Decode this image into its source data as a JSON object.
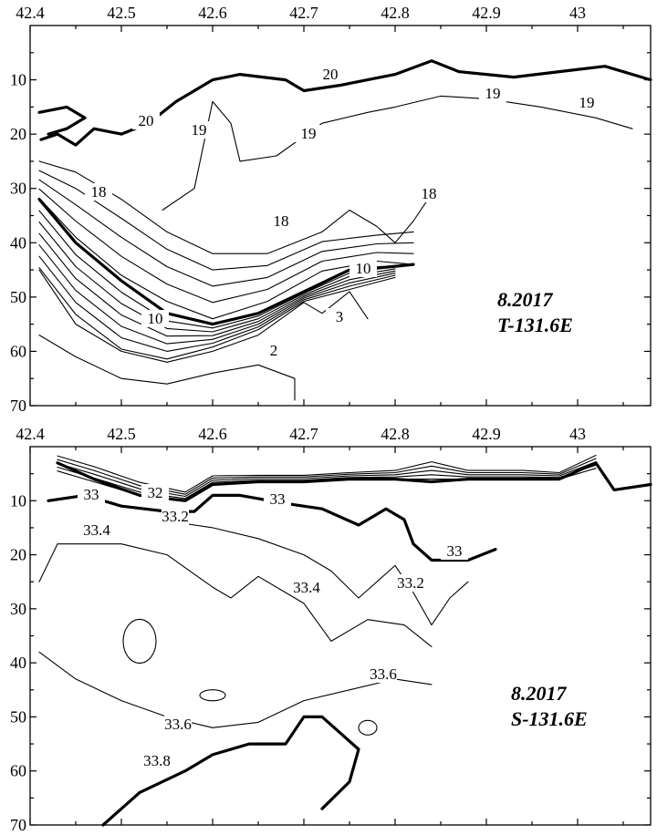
{
  "chart_data": [
    {
      "type": "contour",
      "title": "8.2017",
      "subtitle": "T-131.6E",
      "x_ticks": [
        "42.4",
        "42.5",
        "42.6",
        "42.7",
        "42.8",
        "42.9",
        "43"
      ],
      "y_ticks": [
        "10",
        "20",
        "30",
        "40",
        "50",
        "60",
        "70"
      ],
      "xlim": [
        42.4,
        43.08
      ],
      "ylim": [
        70,
        0
      ],
      "y_inverted": true,
      "grid": false,
      "contour_labels": [
        "20",
        "20",
        "19",
        "19",
        "19",
        "19",
        "18",
        "18",
        "18",
        "10",
        "10",
        "3",
        "2"
      ],
      "contour_lines": [
        {
          "level": 20,
          "bold": true,
          "points": [
            [
              42.412,
              21
            ],
            [
              42.43,
              20
            ],
            [
              42.45,
              22
            ],
            [
              42.47,
              19
            ],
            [
              42.5,
              20
            ],
            [
              42.53,
              18
            ],
            [
              42.56,
              14
            ],
            [
              42.6,
              10
            ],
            [
              42.63,
              9
            ],
            [
              42.68,
              10
            ],
            [
              42.7,
              12
            ],
            [
              42.74,
              11
            ],
            [
              42.8,
              9
            ],
            [
              42.84,
              6.5
            ],
            [
              42.87,
              8.5
            ],
            [
              42.93,
              9.5
            ],
            [
              42.98,
              8.5
            ],
            [
              43.03,
              7.5
            ],
            [
              43.06,
              9
            ],
            [
              43.08,
              10
            ]
          ]
        },
        {
          "level": 20,
          "bold": true,
          "points": [
            [
              42.41,
              16
            ],
            [
              42.44,
              15
            ],
            [
              42.46,
              17
            ],
            [
              42.44,
              19
            ],
            [
              42.42,
              20
            ]
          ]
        },
        {
          "level": 19,
          "bold": false,
          "points": [
            [
              42.545,
              34
            ],
            [
              42.58,
              30
            ],
            [
              42.59,
              22
            ],
            [
              42.6,
              14
            ],
            [
              42.62,
              18
            ],
            [
              42.63,
              25
            ],
            [
              42.67,
              24
            ],
            [
              42.72,
              18
            ],
            [
              42.77,
              16
            ],
            [
              42.8,
              15
            ],
            [
              42.85,
              13
            ],
            [
              42.9,
              13.5
            ],
            [
              42.96,
              15
            ],
            [
              43.02,
              17
            ],
            [
              43.06,
              19
            ]
          ]
        },
        {
          "level": 18,
          "bold": false,
          "points": [
            [
              42.41,
              25
            ],
            [
              42.45,
              27
            ],
            [
              42.5,
              32
            ],
            [
              42.55,
              38
            ],
            [
              42.6,
              42
            ],
            [
              42.66,
              42
            ],
            [
              42.72,
              38
            ],
            [
              42.75,
              34
            ],
            [
              42.78,
              37
            ],
            [
              42.8,
              40
            ],
            [
              42.82,
              36
            ],
            [
              42.84,
              31
            ]
          ]
        },
        {
          "level": 10,
          "bold": true,
          "points": [
            [
              42.41,
              32
            ],
            [
              42.45,
              40
            ],
            [
              42.5,
              47
            ],
            [
              42.55,
              53
            ],
            [
              42.6,
              55
            ],
            [
              42.65,
              53
            ],
            [
              42.7,
              49
            ],
            [
              42.75,
              45
            ],
            [
              42.79,
              44.5
            ],
            [
              42.82,
              44
            ]
          ]
        },
        {
          "level": 3,
          "bold": false,
          "points": [
            [
              42.41,
              45
            ],
            [
              42.45,
              55
            ],
            [
              42.5,
              60
            ],
            [
              42.55,
              62
            ],
            [
              42.6,
              60
            ],
            [
              42.65,
              57
            ],
            [
              42.7,
              51
            ],
            [
              42.72,
              53
            ],
            [
              42.75,
              49
            ],
            [
              42.77,
              54
            ]
          ]
        },
        {
          "level": 2,
          "bold": false,
          "points": [
            [
              42.41,
              57
            ],
            [
              42.45,
              61
            ],
            [
              42.5,
              65
            ],
            [
              42.55,
              66
            ],
            [
              42.6,
              64
            ],
            [
              42.65,
              62.5
            ],
            [
              42.69,
              65
            ],
            [
              42.69,
              69
            ]
          ]
        }
      ]
    },
    {
      "type": "contour",
      "title": "8.2017",
      "subtitle": "S-131.6E",
      "x_ticks": [
        "42.4",
        "42.5",
        "42.6",
        "42.7",
        "42.8",
        "42.9",
        "43"
      ],
      "y_ticks": [
        "10",
        "20",
        "30",
        "40",
        "50",
        "60",
        "70"
      ],
      "xlim": [
        42.4,
        43.08
      ],
      "ylim": [
        70,
        0
      ],
      "y_inverted": true,
      "grid": false,
      "contour_labels": [
        "33",
        "32",
        "33.2",
        "33",
        "33",
        "33.4",
        "33.4",
        "33.2",
        "33.6",
        "33.6",
        "33.8"
      ],
      "contour_lines": [
        {
          "level": 32,
          "bold": true,
          "points": [
            [
              42.43,
              3
            ],
            [
              42.47,
              6
            ],
            [
              42.52,
              9
            ],
            [
              42.57,
              10
            ],
            [
              42.6,
              7
            ],
            [
              42.65,
              6.5
            ],
            [
              42.7,
              6.5
            ],
            [
              42.75,
              6
            ],
            [
              42.8,
              6
            ],
            [
              42.84,
              6.5
            ],
            [
              42.88,
              6
            ],
            [
              42.94,
              6
            ],
            [
              42.98,
              6
            ],
            [
              43.02,
              3
            ],
            [
              43.04,
              8
            ],
            [
              43.08,
              7
            ]
          ]
        },
        {
          "level": 33,
          "bold": true,
          "points": [
            [
              42.42,
              10
            ],
            [
              42.46,
              9
            ],
            [
              42.5,
              11
            ],
            [
              42.55,
              12
            ],
            [
              42.58,
              12
            ],
            [
              42.6,
              9
            ],
            [
              42.63,
              9
            ],
            [
              42.68,
              10.5
            ],
            [
              42.72,
              11.5
            ],
            [
              42.76,
              14.5
            ],
            [
              42.79,
              11.5
            ],
            [
              42.81,
              13.5
            ],
            [
              42.82,
              18
            ],
            [
              42.84,
              21
            ],
            [
              42.88,
              21
            ],
            [
              42.91,
              19
            ]
          ]
        },
        {
          "level": 33.2,
          "bold": false,
          "points": [
            [
              42.56,
              14
            ],
            [
              42.6,
              15
            ],
            [
              42.65,
              17
            ],
            [
              42.7,
              20
            ],
            [
              42.73,
              23
            ],
            [
              42.76,
              28
            ],
            [
              42.8,
              22
            ],
            [
              42.82,
              27
            ],
            [
              42.84,
              33
            ],
            [
              42.86,
              28
            ],
            [
              42.88,
              25
            ]
          ]
        },
        {
          "level": 33.4,
          "bold": false,
          "points": [
            [
              42.41,
              25
            ],
            [
              42.43,
              18
            ],
            [
              42.5,
              18
            ],
            [
              42.55,
              20
            ],
            [
              42.6,
              26
            ],
            [
              42.62,
              28
            ],
            [
              42.65,
              24
            ],
            [
              42.7,
              29
            ],
            [
              42.73,
              36
            ],
            [
              42.77,
              32
            ],
            [
              42.81,
              33
            ],
            [
              42.84,
              37
            ]
          ]
        },
        {
          "level": 33.6,
          "bold": false,
          "points": [
            [
              42.41,
              38
            ],
            [
              42.45,
              43
            ],
            [
              42.5,
              47
            ],
            [
              42.55,
              50
            ],
            [
              42.6,
              52
            ],
            [
              42.65,
              51
            ],
            [
              42.7,
              47
            ],
            [
              42.75,
              45
            ],
            [
              42.8,
              43
            ],
            [
              42.84,
              44
            ]
          ]
        },
        {
          "level": 33.8,
          "bold": true,
          "points": [
            [
              42.48,
              70
            ],
            [
              42.52,
              64
            ],
            [
              42.57,
              60
            ],
            [
              42.6,
              57
            ],
            [
              42.64,
              55
            ],
            [
              42.68,
              55
            ],
            [
              42.7,
              50
            ],
            [
              42.72,
              50
            ],
            [
              42.74,
              53
            ],
            [
              42.76,
              56
            ],
            [
              42.75,
              62
            ],
            [
              42.72,
              67
            ]
          ]
        }
      ]
    }
  ]
}
